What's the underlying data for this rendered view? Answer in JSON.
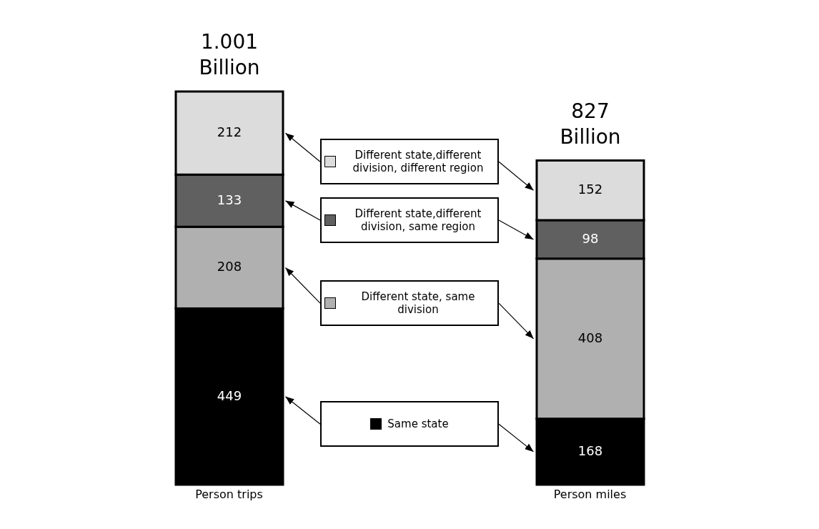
{
  "chart_data": {
    "type": "bar",
    "stacked": true,
    "legend": "center",
    "data_labels": true,
    "categories": [
      "Person trips",
      "Person miles"
    ],
    "totals": [
      "1.001 Billion",
      "827 Billion"
    ],
    "series": [
      {
        "name": "Same state",
        "color": "#000000",
        "values": [
          449,
          168
        ]
      },
      {
        "name": "Different state, same division",
        "color": "#b0b0b0",
        "values": [
          208,
          408
        ]
      },
      {
        "name": "Different state,different division, same region",
        "color": "#606060",
        "values": [
          133,
          98
        ]
      },
      {
        "name": "Different state,different division, different region",
        "color": "#dcdcdc",
        "values": [
          212,
          152
        ]
      }
    ]
  }
}
